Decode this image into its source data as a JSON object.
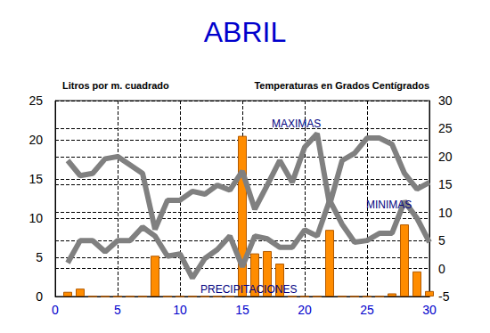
{
  "chart_data": {
    "type": "combo",
    "title": "ABRIL",
    "ylabel": "Litros por m. cuadrado",
    "y2label": "Temperaturas en Grados Centígrados",
    "x": [
      1,
      2,
      3,
      4,
      5,
      6,
      7,
      8,
      9,
      10,
      11,
      12,
      13,
      14,
      15,
      16,
      17,
      18,
      19,
      20,
      21,
      22,
      23,
      24,
      25,
      26,
      27,
      28,
      29,
      30
    ],
    "xlim": [
      0,
      30
    ],
    "xticks": [
      0,
      5,
      10,
      15,
      20,
      25,
      30
    ],
    "ylim": [
      0,
      25
    ],
    "yticks": [
      0,
      5,
      10,
      15,
      20,
      25
    ],
    "y2lim": [
      -5,
      30
    ],
    "y2ticks": [
      -5,
      0,
      5,
      10,
      15,
      20,
      25,
      30
    ],
    "grid": true,
    "series": [
      {
        "name": "MAXIMAS",
        "type": "line",
        "axis": "y2",
        "color": "#808080",
        "values": [
          19.3,
          16.6,
          17,
          19.6,
          20,
          18.5,
          17,
          7,
          12.2,
          12.2,
          13.8,
          13.3,
          14.9,
          14,
          17.4,
          10.6,
          14.9,
          19.3,
          15.4,
          21.7,
          24.1,
          11.4,
          19.3,
          20.6,
          23.3,
          23.3,
          22.2,
          17,
          14.2,
          15.4
        ]
      },
      {
        "name": "MINIMAS",
        "type": "line",
        "axis": "y2",
        "color": "#808080",
        "values": [
          1,
          5,
          5,
          3,
          5,
          5,
          7.4,
          5.8,
          2.2,
          2.6,
          -1.7,
          1.8,
          3.4,
          5.8,
          0.3,
          5.8,
          5.3,
          3.8,
          3.8,
          6.9,
          5.8,
          12.2,
          7.9,
          4.7,
          5,
          6.3,
          6.3,
          12,
          9,
          4.7
        ]
      },
      {
        "name": "PRECIPITACIONES",
        "type": "bar",
        "color": "#ff8c00",
        "values": [
          0.6,
          1,
          0,
          0,
          0,
          0,
          0,
          5.2,
          0,
          0,
          0,
          0,
          0,
          0,
          20.5,
          5.5,
          5.8,
          4.2,
          0,
          0,
          0,
          8.5,
          0,
          0,
          0,
          0,
          0.4,
          9.2,
          3.2,
          0.7
        ]
      }
    ]
  }
}
